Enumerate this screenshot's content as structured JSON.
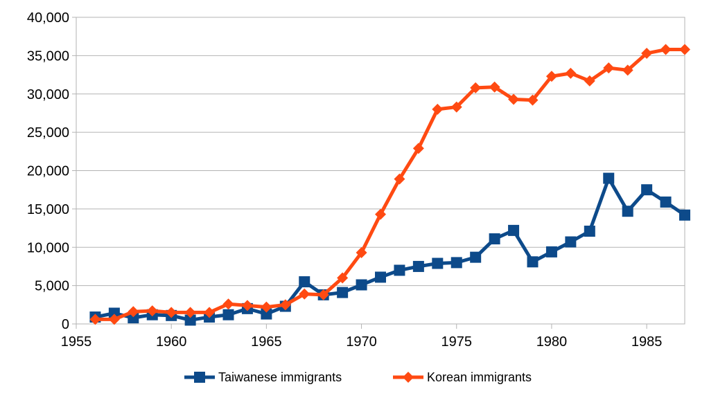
{
  "chart_data": {
    "type": "line",
    "title": "",
    "xlabel": "",
    "ylabel": "",
    "xlim": [
      1955,
      1987
    ],
    "ylim": [
      0,
      40000
    ],
    "x_ticks": [
      1955,
      1960,
      1965,
      1970,
      1975,
      1980,
      1985
    ],
    "x_tick_labels": [
      "1955",
      "1960",
      "1965",
      "1970",
      "1975",
      "1980",
      "1985"
    ],
    "y_ticks": [
      0,
      5000,
      10000,
      15000,
      20000,
      25000,
      30000,
      35000,
      40000
    ],
    "y_tick_labels": [
      "0",
      "5,000",
      "10,000",
      "15,000",
      "20,000",
      "25,000",
      "30,000",
      "35,000",
      "40,000"
    ],
    "grid": "horizontal",
    "legend_position": "bottom",
    "x": [
      1956,
      1957,
      1958,
      1959,
      1960,
      1961,
      1962,
      1963,
      1964,
      1965,
      1966,
      1967,
      1968,
      1969,
      1970,
      1971,
      1972,
      1973,
      1974,
      1975,
      1976,
      1977,
      1978,
      1979,
      1980,
      1981,
      1982,
      1983,
      1984,
      1985,
      1986,
      1987
    ],
    "series": [
      {
        "name": "Taiwanese immigrants",
        "color": "#0d4a8a",
        "marker": "square",
        "values": [
          900,
          1400,
          800,
          1200,
          1100,
          500,
          900,
          1200,
          2000,
          1300,
          2300,
          5500,
          3800,
          4100,
          5100,
          6100,
          7000,
          7500,
          7900,
          8000,
          8700,
          11100,
          12200,
          8100,
          9400,
          10700,
          12100,
          19000,
          14700,
          17500,
          15900,
          14200
        ]
      },
      {
        "name": "Korean immigrants",
        "color": "#ff4a12",
        "marker": "diamond",
        "values": [
          600,
          600,
          1600,
          1700,
          1500,
          1500,
          1500,
          2600,
          2400,
          2200,
          2500,
          3900,
          3800,
          6000,
          9300,
          14300,
          18900,
          22900,
          28000,
          28300,
          30800,
          30900,
          29300,
          29200,
          32300,
          32700,
          31700,
          33400,
          33100,
          35300,
          35800,
          35800
        ]
      }
    ]
  }
}
